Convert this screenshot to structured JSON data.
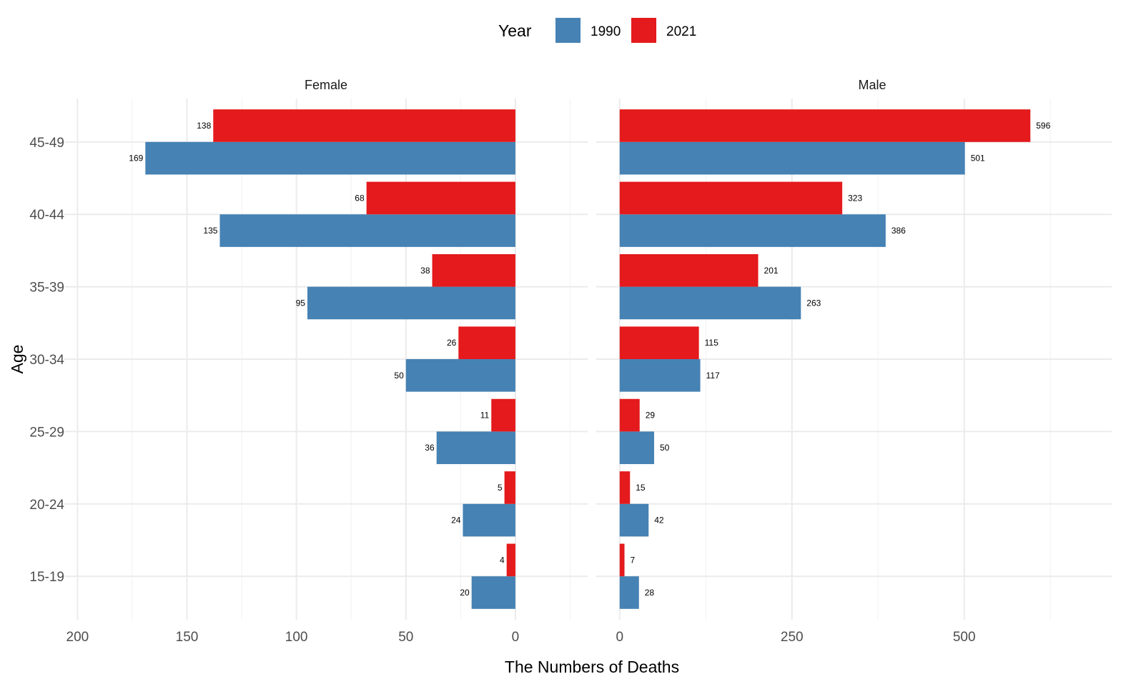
{
  "chart_data": {
    "type": "bar",
    "orientation": "horizontal",
    "layout": "population-pyramid (faceted)",
    "xlabel": "The Numbers of Deaths",
    "ylabel": "Age",
    "categories": [
      "15-19",
      "20-24",
      "25-29",
      "30-34",
      "35-39",
      "40-44",
      "45-49"
    ],
    "legend": {
      "title": "Year",
      "position": "top",
      "entries": [
        {
          "name": "1990",
          "color": "#4682B4"
        },
        {
          "name": "2021",
          "color": "#E41A1C"
        }
      ]
    },
    "grid": true,
    "panels": [
      {
        "name": "Female",
        "x_reversed": true,
        "xlim": [
          -33,
          206
        ],
        "xticks": [
          200,
          150,
          100,
          50,
          0
        ],
        "series": [
          {
            "name": "1990",
            "values": [
              20,
              24,
              36,
              50,
              95,
              135,
              169
            ]
          },
          {
            "name": "2021",
            "values": [
              4,
              5,
              11,
              26,
              38,
              68,
              138
            ]
          }
        ]
      },
      {
        "name": "Male",
        "x_reversed": false,
        "xlim": [
          -34,
          714
        ],
        "xticks": [
          0,
          250,
          500
        ],
        "series": [
          {
            "name": "1990",
            "values": [
              28,
              42,
              50,
              117,
              263,
              386,
              501
            ]
          },
          {
            "name": "2021",
            "values": [
              7,
              15,
              29,
              115,
              201,
              323,
              596
            ]
          }
        ]
      }
    ]
  }
}
